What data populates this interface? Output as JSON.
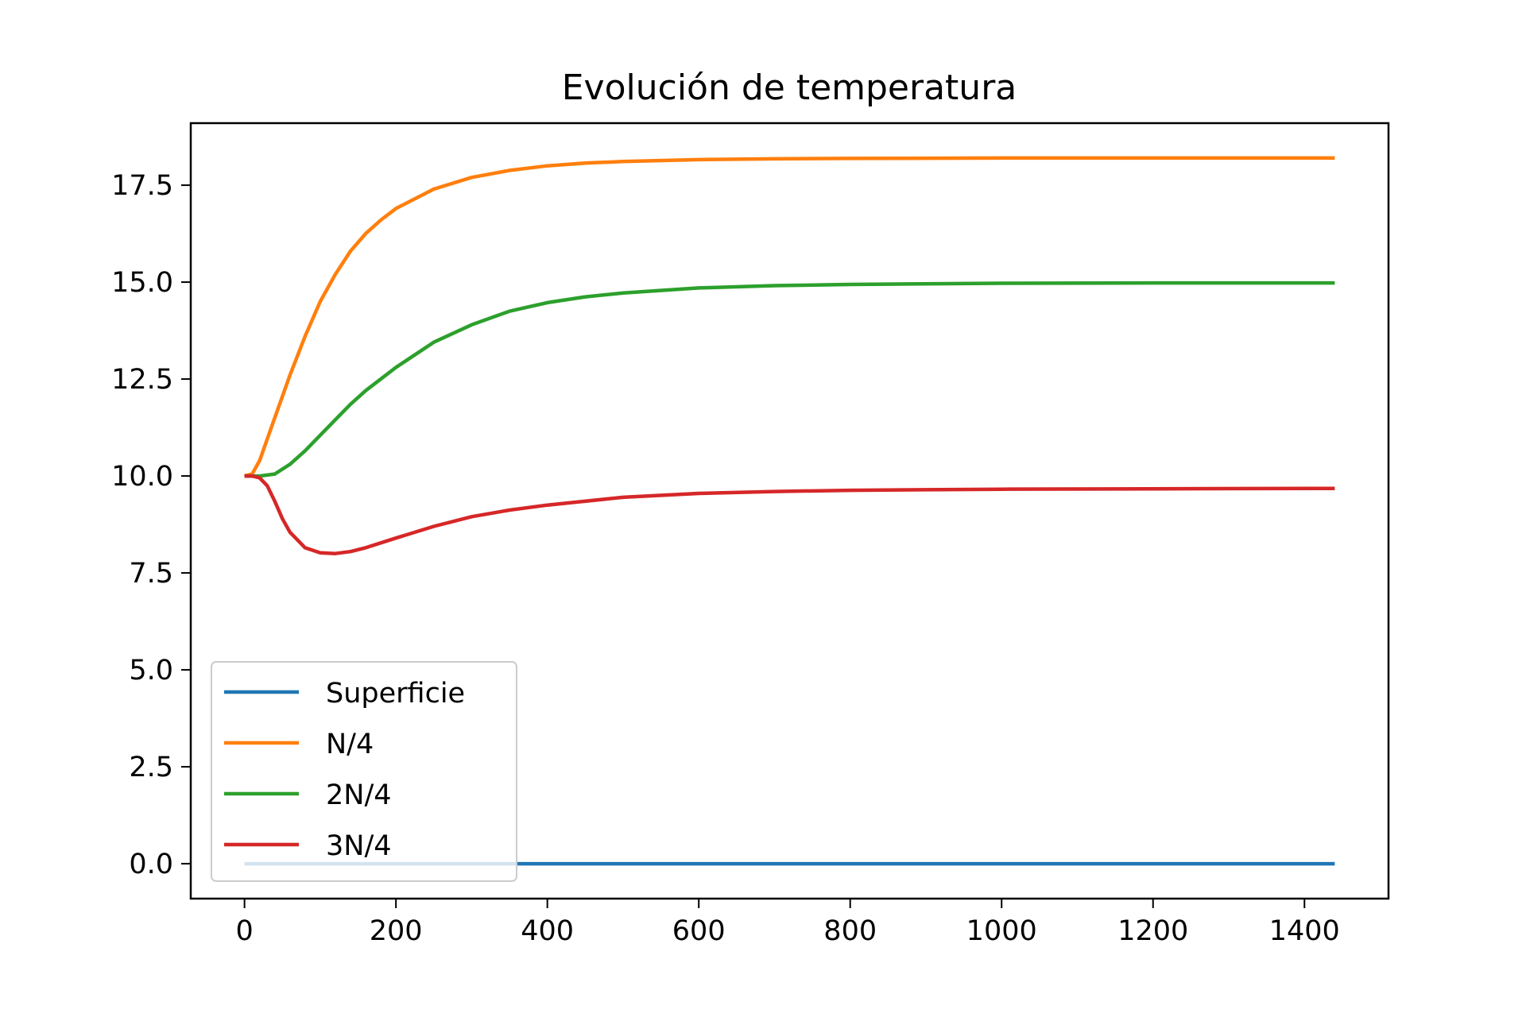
{
  "chart_data": {
    "type": "line",
    "title": "Evolución de temperatura",
    "xlabel": "",
    "ylabel": "",
    "xlim": [
      -71,
      1511
    ],
    "ylim": [
      -0.9,
      19.1
    ],
    "xticks": [
      0,
      200,
      400,
      600,
      800,
      1000,
      1200,
      1400
    ],
    "xtick_labels": [
      "0",
      "200",
      "400",
      "600",
      "800",
      "1000",
      "1200",
      "1400"
    ],
    "yticks": [
      0,
      2.5,
      5,
      7.5,
      10,
      12.5,
      15,
      17.5
    ],
    "ytick_labels": [
      "0.0",
      "2.5",
      "5.0",
      "7.5",
      "10.0",
      "12.5",
      "15.0",
      "17.5"
    ],
    "grid": false,
    "legend_position": "lower-left",
    "series": [
      {
        "name": "Superficie",
        "color": "#1f77b4",
        "x": [
          0,
          1440
        ],
        "values": [
          0,
          0
        ]
      },
      {
        "name": "N/4",
        "color": "#ff7f0e",
        "x": [
          0,
          10,
          20,
          40,
          60,
          80,
          100,
          120,
          140,
          160,
          180,
          200,
          250,
          300,
          350,
          400,
          450,
          500,
          600,
          700,
          800,
          1000,
          1200,
          1440
        ],
        "values": [
          10.0,
          10.05,
          10.4,
          11.5,
          12.6,
          13.6,
          14.5,
          15.2,
          15.8,
          16.25,
          16.6,
          16.9,
          17.4,
          17.7,
          17.88,
          18.0,
          18.07,
          18.11,
          18.16,
          18.18,
          18.19,
          18.2,
          18.2,
          18.2
        ]
      },
      {
        "name": "2N/4",
        "color": "#2ca02c",
        "x": [
          0,
          20,
          40,
          60,
          80,
          100,
          120,
          140,
          160,
          180,
          200,
          250,
          300,
          350,
          400,
          450,
          500,
          600,
          700,
          800,
          1000,
          1200,
          1440
        ],
        "values": [
          10.0,
          10.0,
          10.05,
          10.3,
          10.65,
          11.05,
          11.45,
          11.85,
          12.2,
          12.5,
          12.8,
          13.45,
          13.9,
          14.25,
          14.47,
          14.62,
          14.72,
          14.85,
          14.91,
          14.94,
          14.97,
          14.98,
          14.98
        ]
      },
      {
        "name": "3N/4",
        "color": "#d62728",
        "x": [
          0,
          10,
          20,
          30,
          40,
          50,
          60,
          80,
          100,
          120,
          140,
          160,
          200,
          250,
          300,
          350,
          400,
          500,
          600,
          700,
          800,
          1000,
          1200,
          1440
        ],
        "values": [
          10.0,
          10.0,
          9.95,
          9.75,
          9.35,
          8.9,
          8.55,
          8.15,
          8.02,
          8.0,
          8.05,
          8.15,
          8.4,
          8.7,
          8.95,
          9.12,
          9.25,
          9.45,
          9.55,
          9.6,
          9.63,
          9.66,
          9.67,
          9.68
        ]
      }
    ]
  }
}
